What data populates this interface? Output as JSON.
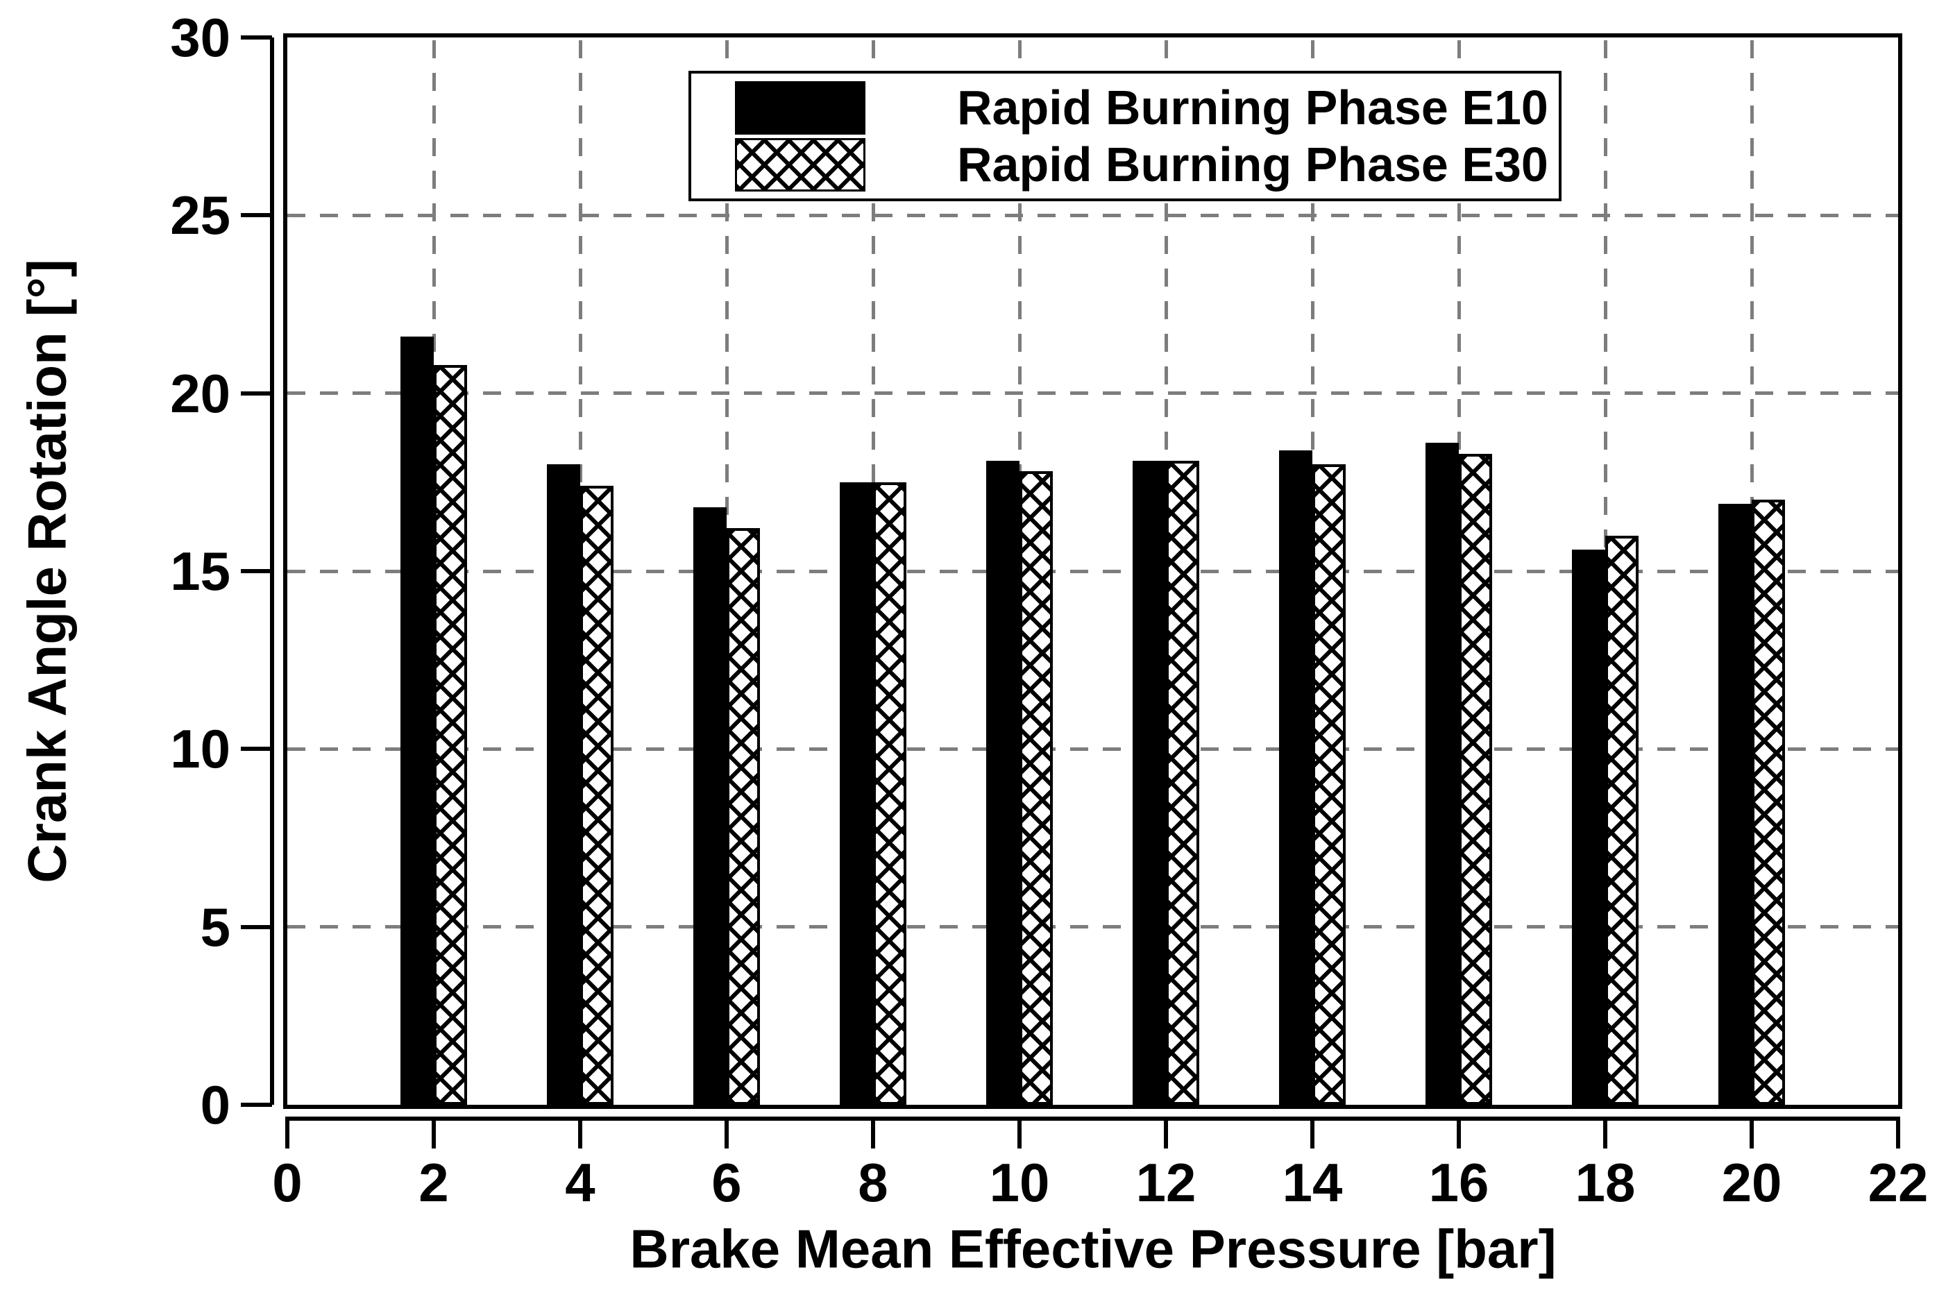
{
  "chart_data": {
    "type": "bar",
    "title": "",
    "xlabel": "Brake Mean Effective Pressure [bar]",
    "ylabel": "Crank Angle Rotation [°]",
    "categories": [
      2,
      4,
      6,
      8,
      10,
      12,
      14,
      16,
      18,
      20
    ],
    "series": [
      {
        "name": "Rapid Burning Phase E10",
        "style": "solid-black",
        "values": [
          21.6,
          18.0,
          16.8,
          17.5,
          18.1,
          18.1,
          18.4,
          18.6,
          15.6,
          16.9
        ]
      },
      {
        "name": "Rapid Burning Phase E30",
        "style": "black-crosshatch-on-white",
        "values": [
          20.8,
          17.4,
          16.2,
          17.5,
          17.8,
          18.1,
          18.0,
          18.3,
          16.0,
          17.0
        ]
      }
    ],
    "xlim": [
      0,
      22
    ],
    "ylim": [
      0,
      30
    ],
    "x_ticks": [
      0,
      2,
      4,
      6,
      8,
      10,
      12,
      14,
      16,
      18,
      20,
      22
    ],
    "y_ticks": [
      0,
      5,
      10,
      15,
      20,
      25,
      30
    ],
    "grid": "dashed gray lines at every tick, horizontal and vertical",
    "legend_position": "inside top, framed box"
  },
  "colors": {
    "background": "#ffffff",
    "bar_fill": "#000000",
    "grid": "#7d7d7d",
    "axis": "#000000",
    "text": "#000000"
  }
}
